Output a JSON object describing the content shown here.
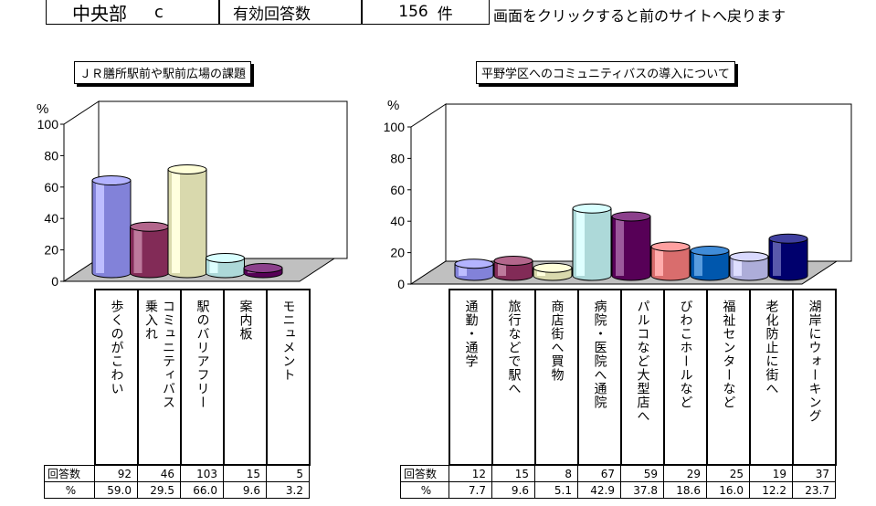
{
  "header": {
    "area": "中央部",
    "area_letter": "c",
    "respondents_label": "有効回答数",
    "respondents_count": "156",
    "respondents_unit": "件",
    "back_link": "画面をクリックすると前のサイトへ戻ります"
  },
  "row_labels": {
    "count": "回答数",
    "percent": "%"
  },
  "chart_data": [
    {
      "type": "bar",
      "title": "ＪＲ膳所駅前や駅前広場の課題",
      "ylabel": "%",
      "ylim": [
        0,
        100
      ],
      "yticks": [
        "0",
        "20",
        "40",
        "60",
        "80",
        "100"
      ],
      "grid": false,
      "categories": [
        "歩くのがこわい",
        "コミュニティバス\n乗入れ",
        "駅のバリアフリー",
        "案内板",
        "モニュメント"
      ],
      "counts": [
        "92",
        "46",
        "103",
        "15",
        "5"
      ],
      "percent_labels": [
        "59.0",
        "29.5",
        "66.0",
        "9.6",
        "3.2"
      ],
      "values": [
        59.0,
        29.5,
        66.0,
        9.6,
        3.2
      ],
      "colors": [
        "#9999ff",
        "#993366",
        "#ffffcc",
        "#ccffff",
        "#660066"
      ]
    },
    {
      "type": "bar",
      "title": "平野学区へのコミュニティバスの導入について",
      "ylabel": "%",
      "ylim": [
        0,
        100
      ],
      "yticks": [
        "0",
        "20",
        "40",
        "60",
        "80",
        "100"
      ],
      "grid": false,
      "categories": [
        "通勤・通学",
        "旅行などで駅へ",
        "商店街へ買物",
        "病院・医院へ通院",
        "パルコなど大型店へ",
        "びわこホールなど",
        "福祉センターなど",
        "老化防止に街へ",
        "湖岸にウォーキング"
      ],
      "counts": [
        "12",
        "15",
        "8",
        "67",
        "59",
        "29",
        "25",
        "19",
        "37"
      ],
      "percent_labels": [
        "7.7",
        "9.6",
        "5.1",
        "42.9",
        "37.8",
        "18.6",
        "16.0",
        "12.2",
        "23.7"
      ],
      "values": [
        7.7,
        9.6,
        5.1,
        42.9,
        37.8,
        18.6,
        16.0,
        12.2,
        23.7
      ],
      "colors": [
        "#9999ff",
        "#993366",
        "#ffffcc",
        "#ccffff",
        "#660066",
        "#ff8080",
        "#0066cc",
        "#ccccff",
        "#000080"
      ]
    }
  ]
}
